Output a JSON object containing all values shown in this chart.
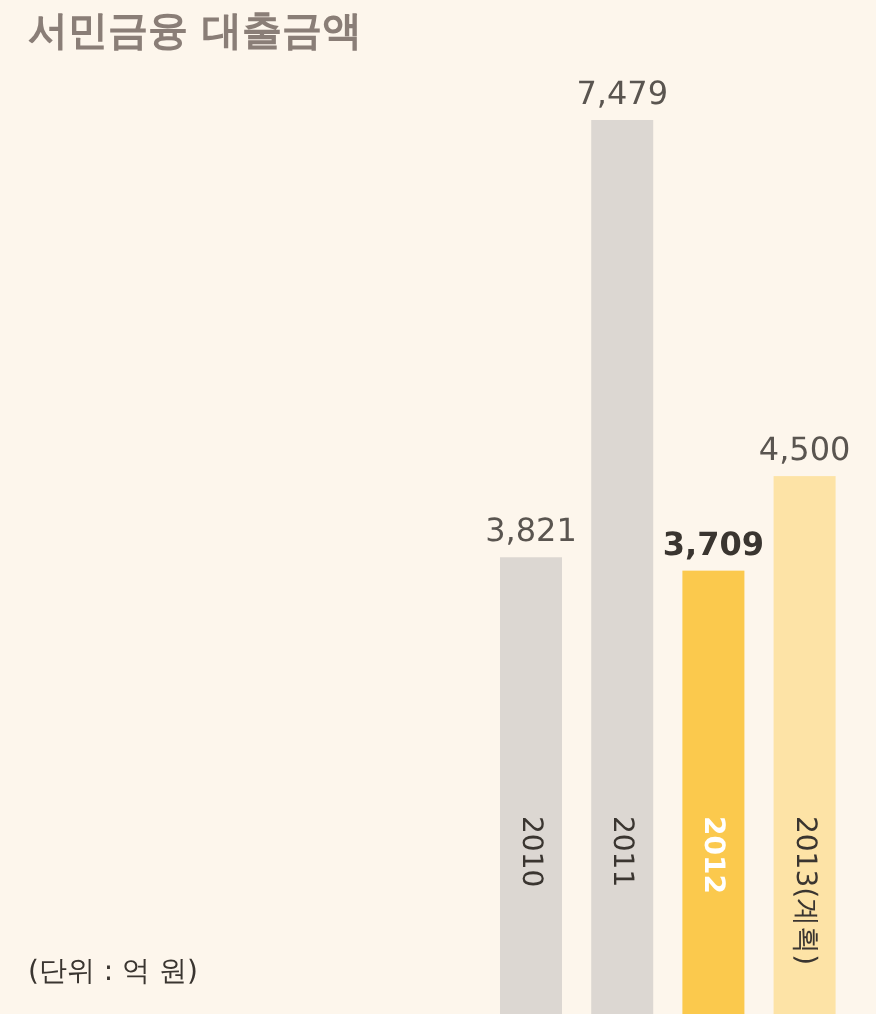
{
  "chart_data": {
    "type": "bar",
    "title": "서민금융 대출금액",
    "categories": [
      "2010",
      "2011",
      "2012",
      "2013(계획)"
    ],
    "values": [
      3821,
      7479,
      3709,
      4500
    ],
    "colors": [
      "#dcd7d2",
      "#dcd7d2",
      "#fbc94d",
      "#fde3a6"
    ],
    "value_labels": [
      "3,821",
      "7,479",
      "3,709",
      "4,500"
    ],
    "annotations": [
      "(단위 : 억 원)"
    ]
  }
}
